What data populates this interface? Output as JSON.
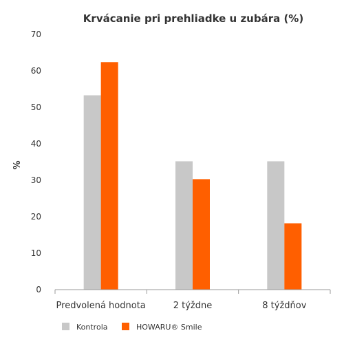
{
  "chart_data": {
    "type": "bar",
    "title": "Krvácanie pri prehliadke u zubára (%)",
    "xlabel": "",
    "ylabel": "%",
    "ylim": [
      0,
      70
    ],
    "yticks": [
      0,
      10,
      20,
      30,
      40,
      50,
      60,
      70
    ],
    "grid": false,
    "legend_position": "bottom-left",
    "categories": [
      "Predvolená hodnota",
      "2 týždne",
      "8 týždňov"
    ],
    "series": [
      {
        "name": "Kontrola",
        "color": "#c8c8c8",
        "values": [
          53.3,
          35.2,
          35.2
        ]
      },
      {
        "name": "HOWARU® Smile",
        "color": "#ff5f00",
        "values": [
          62.4,
          30.3,
          18.2
        ]
      }
    ]
  }
}
